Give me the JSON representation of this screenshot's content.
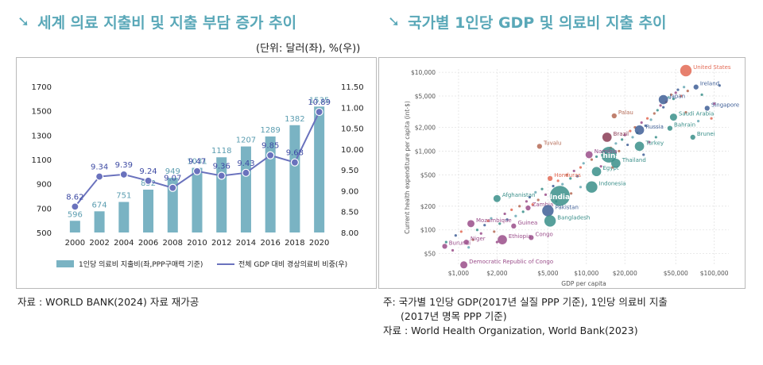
{
  "left": {
    "title": "세계 의료 지출비 및 지출 부담 증가 추이",
    "unit": "(단위: 달러(좌), %(우))",
    "source": "자료 : WORLD BANK(2024) 자료 재가공"
  },
  "right": {
    "title": "국가별 1인당 GDP 및 의료비 지출 추이",
    "note_line1": "주: 국가별 1인당 GDP(2017년 실질 PPP 기준), 1인당 의료비 지출",
    "note_line2": "(2017년 명목 PPP 기준)",
    "source": "자료 : World Health Organization, World Bank(2023)"
  },
  "chart_data": [
    {
      "type": "bar+line",
      "categories": [
        "2000",
        "2002",
        "2004",
        "2006",
        "2008",
        "2010",
        "2012",
        "2014",
        "2016",
        "2018",
        "2020"
      ],
      "series": [
        {
          "name": "1인당 의료비 지출비(좌,PPP구매력 기준)",
          "type": "bar",
          "axis": "left",
          "values": [
            596,
            674,
            751,
            852,
            949,
            1031,
            1118,
            1207,
            1289,
            1382,
            1535
          ]
        },
        {
          "name": "전체 GDP 대비 경상의료비 비중(우)",
          "type": "line",
          "axis": "right",
          "values": [
            8.62,
            9.34,
            9.39,
            9.24,
            9.07,
            9.47,
            9.36,
            9.43,
            9.85,
            9.68,
            10.89
          ]
        }
      ],
      "y_left": {
        "ticks": [
          500,
          700,
          900,
          1100,
          1300,
          1500,
          1700
        ],
        "range": [
          500,
          1700
        ]
      },
      "y_right": {
        "ticks": [
          "8.00",
          "8.50",
          "9.00",
          "9.50",
          "10.00",
          "10.50",
          "11.00",
          "11.50"
        ],
        "range": [
          8.0,
          11.5
        ]
      },
      "colors": {
        "bar": "#7ab3c3",
        "line": "#6a72bd"
      }
    },
    {
      "type": "scatter",
      "scale": "log-log",
      "xlabel": "GDP per capita",
      "ylabel": "Current health expenditure per capita (int-$)",
      "x_ticks": [
        "$1,000",
        "$2,000",
        "$5,000",
        "$10,000",
        "$20,000",
        "$50,000",
        "$100,000"
      ],
      "x_tick_values": [
        1000,
        2000,
        5000,
        10000,
        20000,
        50000,
        100000
      ],
      "y_ticks": [
        "$50",
        "$100",
        "$200",
        "$500",
        "$1,000",
        "$2,000",
        "$5,000",
        "$10,000"
      ],
      "y_tick_values": [
        50,
        100,
        200,
        500,
        1000,
        2000,
        5000,
        10000
      ],
      "x_range": [
        700,
        130000
      ],
      "y_range": [
        35,
        11000
      ],
      "labeled_points": [
        {
          "name": "United States",
          "x": 60000,
          "y": 10500,
          "size": 4,
          "color": "#e36a55"
        },
        {
          "name": "Ireland",
          "x": 72000,
          "y": 6500,
          "size": 1,
          "color": "#3f5f97"
        },
        {
          "name": "Japan",
          "x": 40000,
          "y": 4500,
          "size": 3,
          "color": "#3f5f97"
        },
        {
          "name": "Singapore",
          "x": 88000,
          "y": 3500,
          "size": 1,
          "color": "#3f5f97"
        },
        {
          "name": "Saudi Arabia",
          "x": 48000,
          "y": 2700,
          "size": 2,
          "color": "#3a8f8a"
        },
        {
          "name": "Bahrain",
          "x": 45000,
          "y": 1950,
          "size": 1,
          "color": "#3a8f8a"
        },
        {
          "name": "Brunei",
          "x": 68000,
          "y": 1500,
          "size": 1,
          "color": "#3a8f8a"
        },
        {
          "name": "Palau",
          "x": 16500,
          "y": 2800,
          "size": 1,
          "color": "#b56a55"
        },
        {
          "name": "Russia",
          "x": 26000,
          "y": 1850,
          "size": 3,
          "color": "#3f5f97"
        },
        {
          "name": "Brazil",
          "x": 14500,
          "y": 1500,
          "size": 3,
          "color": "#8a3c55"
        },
        {
          "name": "Turkey",
          "x": 26000,
          "y": 1150,
          "size": 3,
          "color": "#3a8f8a"
        },
        {
          "name": "China",
          "x": 15000,
          "y": 900,
          "size": 6,
          "color": "#3a8f8a"
        },
        {
          "name": "Tuvalu",
          "x": 4300,
          "y": 1150,
          "size": 1,
          "color": "#b56a55"
        },
        {
          "name": "Namibia",
          "x": 10500,
          "y": 900,
          "size": 2,
          "color": "#9a4d8a"
        },
        {
          "name": "Thailand",
          "x": 17000,
          "y": 700,
          "size": 3,
          "color": "#3a8f8a"
        },
        {
          "name": "Egypt",
          "x": 12000,
          "y": 550,
          "size": 3,
          "color": "#3a8f8a"
        },
        {
          "name": "Honduras",
          "x": 5200,
          "y": 450,
          "size": 1,
          "color": "#e36a55"
        },
        {
          "name": "Indonesia",
          "x": 11000,
          "y": 350,
          "size": 4,
          "color": "#3a8f8a"
        },
        {
          "name": "India",
          "x": 6200,
          "y": 270,
          "size": 8,
          "color": "#3a8f8a"
        },
        {
          "name": "Afghanistan",
          "x": 2000,
          "y": 250,
          "size": 2,
          "color": "#3a8f8a"
        },
        {
          "name": "Zambia",
          "x": 3500,
          "y": 190,
          "size": 1,
          "color": "#9a4d8a"
        },
        {
          "name": "Pakistan",
          "x": 5000,
          "y": 175,
          "size": 4,
          "color": "#3f5f97"
        },
        {
          "name": "Bangladesh",
          "x": 5200,
          "y": 130,
          "size": 4,
          "color": "#3a8f8a"
        },
        {
          "name": "Mozambique",
          "x": 1250,
          "y": 120,
          "size": 2,
          "color": "#9a4d8a"
        },
        {
          "name": "Guinea",
          "x": 2700,
          "y": 112,
          "size": 1,
          "color": "#9a4d8a"
        },
        {
          "name": "Ethiopia",
          "x": 2200,
          "y": 75,
          "size": 3,
          "color": "#9a4d8a"
        },
        {
          "name": "Congo",
          "x": 3700,
          "y": 80,
          "size": 1,
          "color": "#9a4d8a"
        },
        {
          "name": "Niger",
          "x": 1150,
          "y": 70,
          "size": 1,
          "color": "#9a4d8a"
        },
        {
          "name": "Burundi",
          "x": 780,
          "y": 62,
          "size": 1,
          "color": "#9a4d8a"
        },
        {
          "name": "Democratic Republic of Congo",
          "x": 1100,
          "y": 36,
          "size": 2,
          "color": "#9a4d8a"
        }
      ],
      "unlabeled_points": [
        [
          800,
          70
        ],
        [
          900,
          55
        ],
        [
          950,
          85
        ],
        [
          1050,
          95
        ],
        [
          1200,
          60
        ],
        [
          1300,
          75
        ],
        [
          1400,
          100
        ],
        [
          1500,
          90
        ],
        [
          1600,
          115
        ],
        [
          1700,
          130
        ],
        [
          1800,
          140
        ],
        [
          1900,
          95
        ],
        [
          2100,
          120
        ],
        [
          2300,
          160
        ],
        [
          2400,
          135
        ],
        [
          2600,
          180
        ],
        [
          2800,
          150
        ],
        [
          3000,
          200
        ],
        [
          3200,
          170
        ],
        [
          3400,
          230
        ],
        [
          3600,
          260
        ],
        [
          3800,
          210
        ],
        [
          4000,
          300
        ],
        [
          4200,
          240
        ],
        [
          4500,
          330
        ],
        [
          4800,
          280
        ],
        [
          5500,
          360
        ],
        [
          6000,
          420
        ],
        [
          6500,
          380
        ],
        [
          7000,
          500
        ],
        [
          7500,
          450
        ],
        [
          8000,
          560
        ],
        [
          8500,
          480
        ],
        [
          9000,
          620
        ],
        [
          9500,
          700
        ],
        [
          11000,
          780
        ],
        [
          12000,
          850
        ],
        [
          13000,
          640
        ],
        [
          14000,
          950
        ],
        [
          15500,
          1100
        ],
        [
          17000,
          1250
        ],
        [
          18000,
          1000
        ],
        [
          19000,
          1400
        ],
        [
          20000,
          1600
        ],
        [
          21000,
          1200
        ],
        [
          22000,
          1800
        ],
        [
          23000,
          1500
        ],
        [
          24000,
          2000
        ],
        [
          25000,
          1700
        ],
        [
          27000,
          2300
        ],
        [
          29000,
          2100
        ],
        [
          30000,
          2600
        ],
        [
          32000,
          2500
        ],
        [
          34000,
          3000
        ],
        [
          36000,
          3300
        ],
        [
          38000,
          3800
        ],
        [
          40000,
          3600
        ],
        [
          42000,
          4200
        ],
        [
          44000,
          4800
        ],
        [
          46000,
          5200
        ],
        [
          48000,
          4600
        ],
        [
          50000,
          5500
        ],
        [
          52000,
          6000
        ],
        [
          55000,
          5000
        ],
        [
          58000,
          6500
        ],
        [
          62000,
          5800
        ],
        [
          80000,
          5200
        ],
        [
          100000,
          4000
        ],
        [
          110000,
          6800
        ],
        [
          95000,
          2600
        ],
        [
          75000,
          2400
        ],
        [
          60000,
          3100
        ],
        [
          35000,
          1500
        ],
        [
          31000,
          1300
        ],
        [
          28000,
          900
        ],
        [
          16000,
          620
        ],
        [
          9000,
          350
        ],
        [
          7600,
          290
        ],
        [
          5800,
          230
        ],
        [
          2000,
          70
        ]
      ]
    }
  ]
}
